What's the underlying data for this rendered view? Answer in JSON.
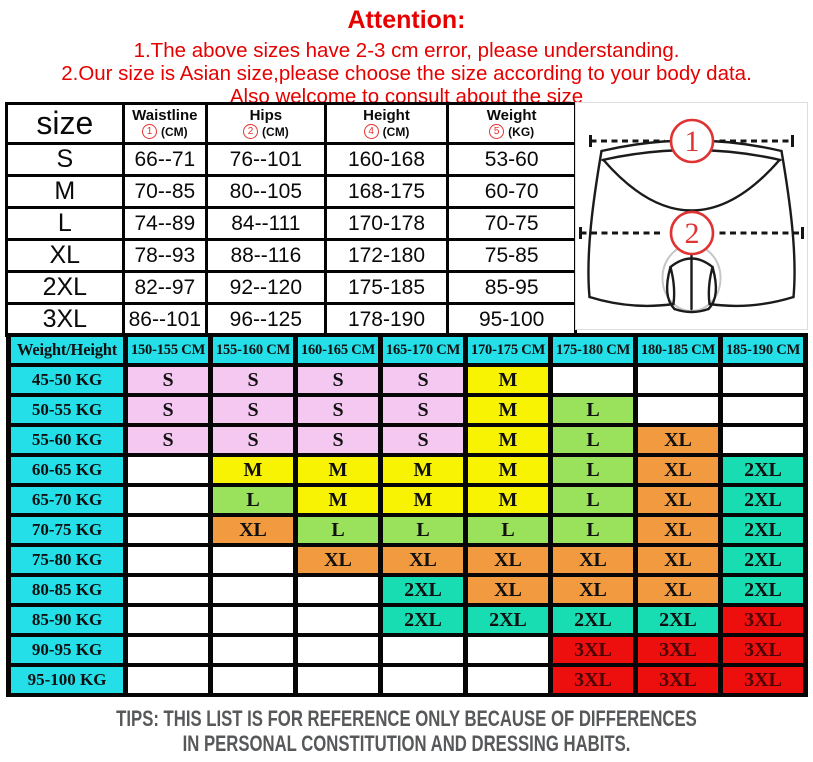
{
  "attention": {
    "title": "Attention:",
    "lines": [
      "1.The above sizes have 2-3 cm error, please understanding.",
      "2.Our size is Asian size,please choose the size according to your body data.",
      "Also welcome to consult about the size"
    ],
    "text_color": "#e60000"
  },
  "size_table": {
    "title_header": "size",
    "columns": [
      {
        "label": "Waistline",
        "mark": "1",
        "unit": "(CM)"
      },
      {
        "label": "Hips",
        "mark": "2",
        "unit": "(CM)"
      },
      {
        "label": "Height",
        "mark": "4",
        "unit": "(CM)"
      },
      {
        "label": "Weight",
        "mark": "5",
        "unit": "(KG)"
      }
    ],
    "rows": [
      {
        "size": "S",
        "waistline": "66--71",
        "hips": "76--101",
        "height": "160-168",
        "weight": "53-60"
      },
      {
        "size": "M",
        "waistline": "70--85",
        "hips": "80--105",
        "height": "168-175",
        "weight": "60-70"
      },
      {
        "size": "L",
        "waistline": "74--89",
        "hips": "84--111",
        "height": "170-178",
        "weight": "70-75"
      },
      {
        "size": "XL",
        "waistline": "78--93",
        "hips": "88--116",
        "height": "172-180",
        "weight": "75-85"
      },
      {
        "size": "2XL",
        "waistline": "82--97",
        "hips": "92--120",
        "height": "175-185",
        "weight": "85-95"
      },
      {
        "size": "3XL",
        "waistline": "86--101",
        "hips": "96--125",
        "height": "178-190",
        "weight": "95-100"
      }
    ]
  },
  "diagram": {
    "waist_label": "1",
    "hips_label": "2",
    "mark_color": "#e03434"
  },
  "matrix": {
    "corner_label": "Weight/Height",
    "height_columns": [
      "150-155 CM",
      "155-160 CM",
      "160-165 CM",
      "165-170 CM",
      "170-175 CM",
      "175-180 CM",
      "180-185 CM",
      "185-190 CM"
    ],
    "weight_rows": [
      {
        "label": "45-50 KG",
        "cells": [
          "S",
          "S",
          "S",
          "S",
          "M",
          "",
          "",
          ""
        ]
      },
      {
        "label": "50-55 KG",
        "cells": [
          "S",
          "S",
          "S",
          "S",
          "M",
          "L",
          "",
          ""
        ]
      },
      {
        "label": "55-60 KG",
        "cells": [
          "S",
          "S",
          "S",
          "S",
          "M",
          "L",
          "XL",
          ""
        ]
      },
      {
        "label": "60-65 KG",
        "cells": [
          "",
          "M",
          "M",
          "M",
          "M",
          "L",
          "XL",
          "2XL"
        ]
      },
      {
        "label": "65-70 KG",
        "cells": [
          "",
          "L",
          "M",
          "M",
          "M",
          "L",
          "XL",
          "2XL"
        ]
      },
      {
        "label": "70-75 KG",
        "cells": [
          "",
          "XL",
          "L",
          "L",
          "L",
          "L",
          "XL",
          "2XL"
        ]
      },
      {
        "label": "75-80 KG",
        "cells": [
          "",
          "",
          "XL",
          "XL",
          "XL",
          "XL",
          "XL",
          "2XL"
        ]
      },
      {
        "label": "80-85 KG",
        "cells": [
          "",
          "",
          "",
          "2XL",
          "XL",
          "XL",
          "XL",
          "2XL"
        ]
      },
      {
        "label": "85-90 KG",
        "cells": [
          "",
          "",
          "",
          "2XL",
          "2XL",
          "2XL",
          "2XL",
          "3XL"
        ]
      },
      {
        "label": "90-95 KG",
        "cells": [
          "",
          "",
          "",
          "",
          "",
          "3XL",
          "3XL",
          "3XL"
        ]
      },
      {
        "label": "95-100 KG",
        "cells": [
          "",
          "",
          "",
          "",
          "",
          "3XL",
          "3XL",
          "3XL"
        ]
      }
    ],
    "colors": {
      "header": "#24dfe8",
      "S": "#f5c8f2",
      "M": "#f7f303",
      "L": "#9be25c",
      "XL": "#f19a40",
      "2XL": "#18dcb2",
      "3XL": "#ed0e0e",
      "empty": "#ffffff"
    }
  },
  "tips": {
    "lines": [
      "TIPS: THIS LIST IS FOR REFERENCE ONLY BECAUSE OF DIFFERENCES",
      "IN PERSONAL CONSTITUTION AND DRESSING HABITS."
    ]
  }
}
